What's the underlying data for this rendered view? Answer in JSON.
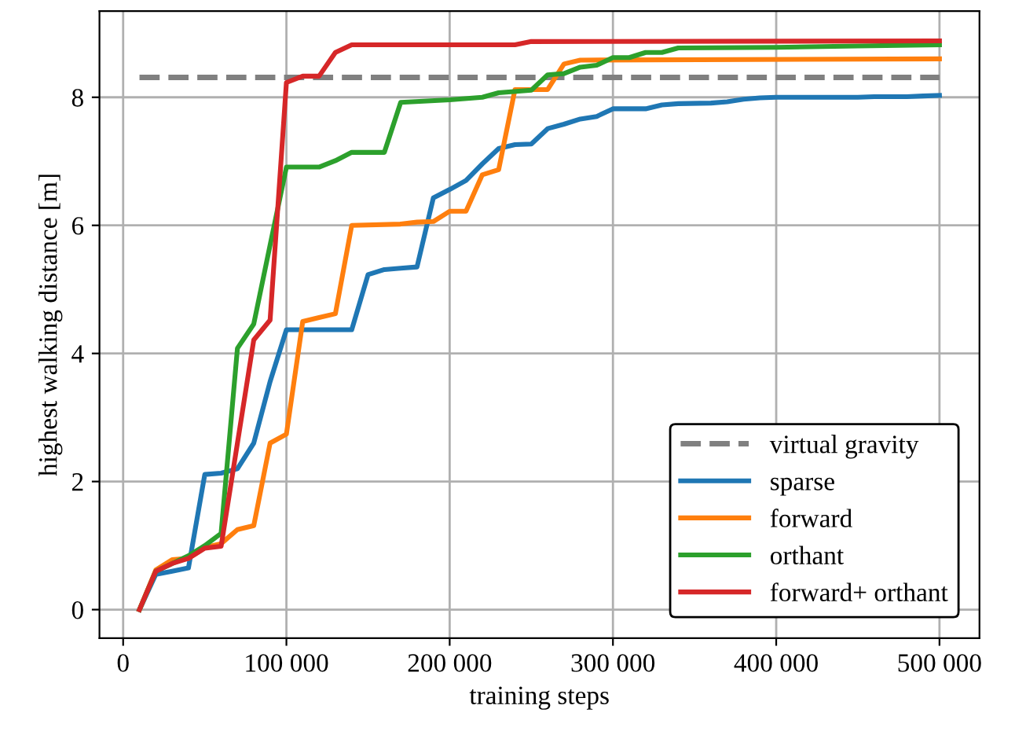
{
  "chart_data": {
    "type": "line",
    "xlabel": "training steps",
    "ylabel": "highest walking distance [m]",
    "xlim": [
      -14500,
      524500
    ],
    "ylim": [
      -0.445,
      9.345
    ],
    "xticks": [
      {
        "value": 0,
        "label": "0"
      },
      {
        "value": 100000,
        "label": "100 000"
      },
      {
        "value": 200000,
        "label": "200 000"
      },
      {
        "value": 300000,
        "label": "300 000"
      },
      {
        "value": 400000,
        "label": "400 000"
      },
      {
        "value": 500000,
        "label": "500 000"
      }
    ],
    "yticks": [
      0,
      2,
      4,
      6,
      8
    ],
    "grid": true,
    "legend": "bottom right",
    "line_style": "solid",
    "marker": "none",
    "series": [
      {
        "name": "virtual gravity",
        "color": "#808080",
        "line_style": "dashed",
        "x": [
          10000,
          500000
        ],
        "values": [
          8.31,
          8.31
        ]
      },
      {
        "name": "sparse",
        "color": "#1f77b4",
        "x": [
          10000,
          20000,
          30000,
          40000,
          50000,
          60000,
          70000,
          80000,
          90000,
          100000,
          140000,
          150000,
          160000,
          170000,
          180000,
          190000,
          200000,
          210000,
          220000,
          230000,
          240000,
          250000,
          260000,
          270000,
          280000,
          290000,
          300000,
          320000,
          330000,
          340000,
          360000,
          370000,
          380000,
          390000,
          400000,
          450000,
          460000,
          480000,
          490000,
          500000
        ],
        "values": [
          0,
          0.55,
          0.6,
          0.65,
          2.11,
          2.13,
          2.2,
          2.6,
          3.56,
          4.37,
          4.37,
          5.23,
          5.31,
          5.33,
          5.35,
          6.43,
          6.56,
          6.7,
          6.96,
          7.2,
          7.26,
          7.27,
          7.51,
          7.58,
          7.66,
          7.7,
          7.82,
          7.82,
          7.88,
          7.9,
          7.91,
          7.93,
          7.97,
          7.99,
          8.0,
          8.0,
          8.01,
          8.01,
          8.02,
          8.03
        ]
      },
      {
        "name": "forward",
        "color": "#ff7f0e",
        "x": [
          10000,
          20000,
          30000,
          40000,
          50000,
          60000,
          70000,
          80000,
          90000,
          100000,
          110000,
          120000,
          130000,
          140000,
          170000,
          180000,
          190000,
          200000,
          210000,
          220000,
          230000,
          240000,
          260000,
          270000,
          280000,
          500000
        ],
        "values": [
          0,
          0.62,
          0.78,
          0.8,
          0.97,
          1.03,
          1.25,
          1.31,
          2.6,
          2.74,
          4.5,
          4.56,
          4.62,
          6.0,
          6.02,
          6.05,
          6.06,
          6.22,
          6.22,
          6.79,
          6.87,
          8.12,
          8.12,
          8.52,
          8.58,
          8.6
        ]
      },
      {
        "name": "orthant",
        "color": "#2ca02c",
        "x": [
          10000,
          20000,
          30000,
          40000,
          50000,
          60000,
          70000,
          80000,
          90000,
          100000,
          120000,
          130000,
          140000,
          160000,
          170000,
          200000,
          220000,
          230000,
          250000,
          260000,
          270000,
          280000,
          290000,
          300000,
          310000,
          320000,
          330000,
          340000,
          400000,
          450000,
          500000
        ],
        "values": [
          0,
          0.6,
          0.72,
          0.84,
          1.0,
          1.19,
          4.08,
          4.46,
          5.69,
          6.91,
          6.91,
          7.01,
          7.14,
          7.14,
          7.92,
          7.96,
          8.0,
          8.07,
          8.11,
          8.35,
          8.37,
          8.47,
          8.5,
          8.62,
          8.62,
          8.7,
          8.7,
          8.77,
          8.78,
          8.8,
          8.82
        ]
      },
      {
        "name": "forward+ orthant",
        "color": "#d62728",
        "x": [
          10000,
          20000,
          30000,
          40000,
          50000,
          60000,
          70000,
          80000,
          90000,
          100000,
          110000,
          120000,
          130000,
          140000,
          240000,
          250000,
          500000
        ],
        "values": [
          0,
          0.6,
          0.72,
          0.8,
          0.96,
          0.99,
          2.6,
          4.21,
          4.52,
          8.23,
          8.33,
          8.33,
          8.7,
          8.82,
          8.82,
          8.87,
          8.88
        ]
      }
    ]
  }
}
